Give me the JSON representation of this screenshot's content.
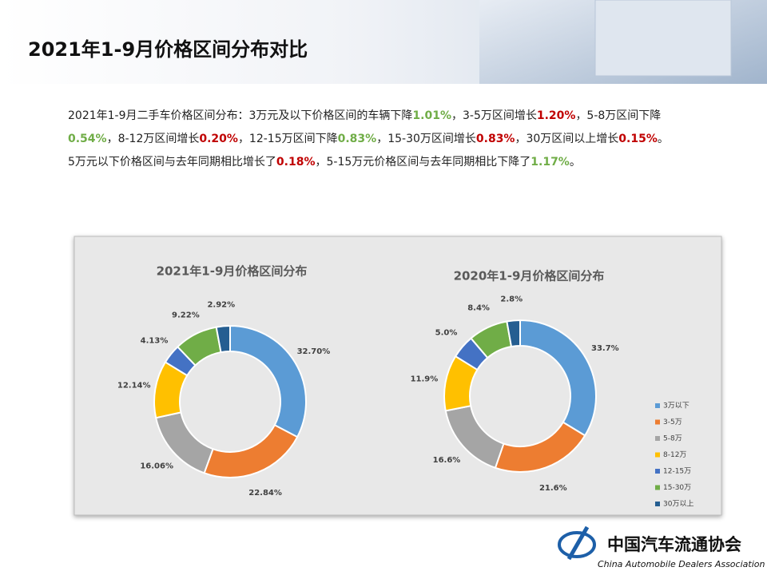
{
  "header": {
    "title": "2021年1-9月价格区间分布对比"
  },
  "paragraphs": [
    {
      "segments": [
        {
          "text": "2021年1-9月二手车价格区间分布：3万元及以下价格区间的车辆下降"
        },
        {
          "text": "1.01%",
          "color": "#70ad47"
        },
        {
          "text": "，3-5万区间增长"
        },
        {
          "text": "1.20%",
          "color": "#c00000"
        },
        {
          "text": "，5-8万区间下降"
        },
        {
          "text": "0.54%",
          "color": "#70ad47"
        },
        {
          "text": "，8-12万区间增长"
        },
        {
          "text": "0.20%",
          "color": "#c00000"
        },
        {
          "text": "，12-15万区间下降"
        },
        {
          "text": "0.83%",
          "color": "#70ad47"
        },
        {
          "text": "，15-30万区间增长"
        },
        {
          "text": "0.83%",
          "color": "#c00000"
        },
        {
          "text": "，30万区间以上增长"
        },
        {
          "text": "0.15%",
          "color": "#c00000"
        },
        {
          "text": "。"
        }
      ]
    },
    {
      "segments": [
        {
          "text": "5万元以下价格区间与去年同期相比增长了"
        },
        {
          "text": "0.18%",
          "color": "#c00000"
        },
        {
          "text": "，5-15万元价格区间与去年同期相比下降了"
        },
        {
          "text": "1.17%",
          "color": "#70ad47"
        },
        {
          "text": "。"
        }
      ]
    }
  ],
  "chart_data": [
    {
      "type": "pie",
      "title": "2021年1-9月价格区间分布",
      "categories": [
        "3万以下",
        "3-5万",
        "5-8万",
        "8-12万",
        "12-15万",
        "15-30万",
        "30万以上"
      ],
      "values": [
        32.7,
        22.84,
        16.06,
        12.14,
        4.13,
        9.22,
        2.92
      ],
      "value_labels": [
        "32.70%",
        "22.84%",
        "16.06%",
        "12.14%",
        "4.13%",
        "9.22%",
        "2.92%"
      ],
      "colors": [
        "#5b9bd5",
        "#ed7d31",
        "#a5a5a5",
        "#ffc000",
        "#4472c4",
        "#70ad47",
        "#255e91"
      ]
    },
    {
      "type": "pie",
      "title": "2020年1-9月价格区间分布",
      "categories": [
        "3万以下",
        "3-5万",
        "5-8万",
        "8-12万",
        "12-15万",
        "15-30万",
        "30万以上"
      ],
      "values": [
        33.7,
        21.6,
        16.6,
        11.9,
        5.0,
        8.4,
        2.8
      ],
      "value_labels": [
        "33.7%",
        "21.6%",
        "16.6%",
        "11.9%",
        "5.0%",
        "8.4%",
        "2.8%"
      ],
      "colors": [
        "#5b9bd5",
        "#ed7d31",
        "#a5a5a5",
        "#ffc000",
        "#4472c4",
        "#70ad47",
        "#255e91"
      ],
      "legend": "right"
    }
  ],
  "footer": {
    "org_cn": "中国汽车流通协会",
    "org_en": "China Automobile Dealers Association"
  }
}
